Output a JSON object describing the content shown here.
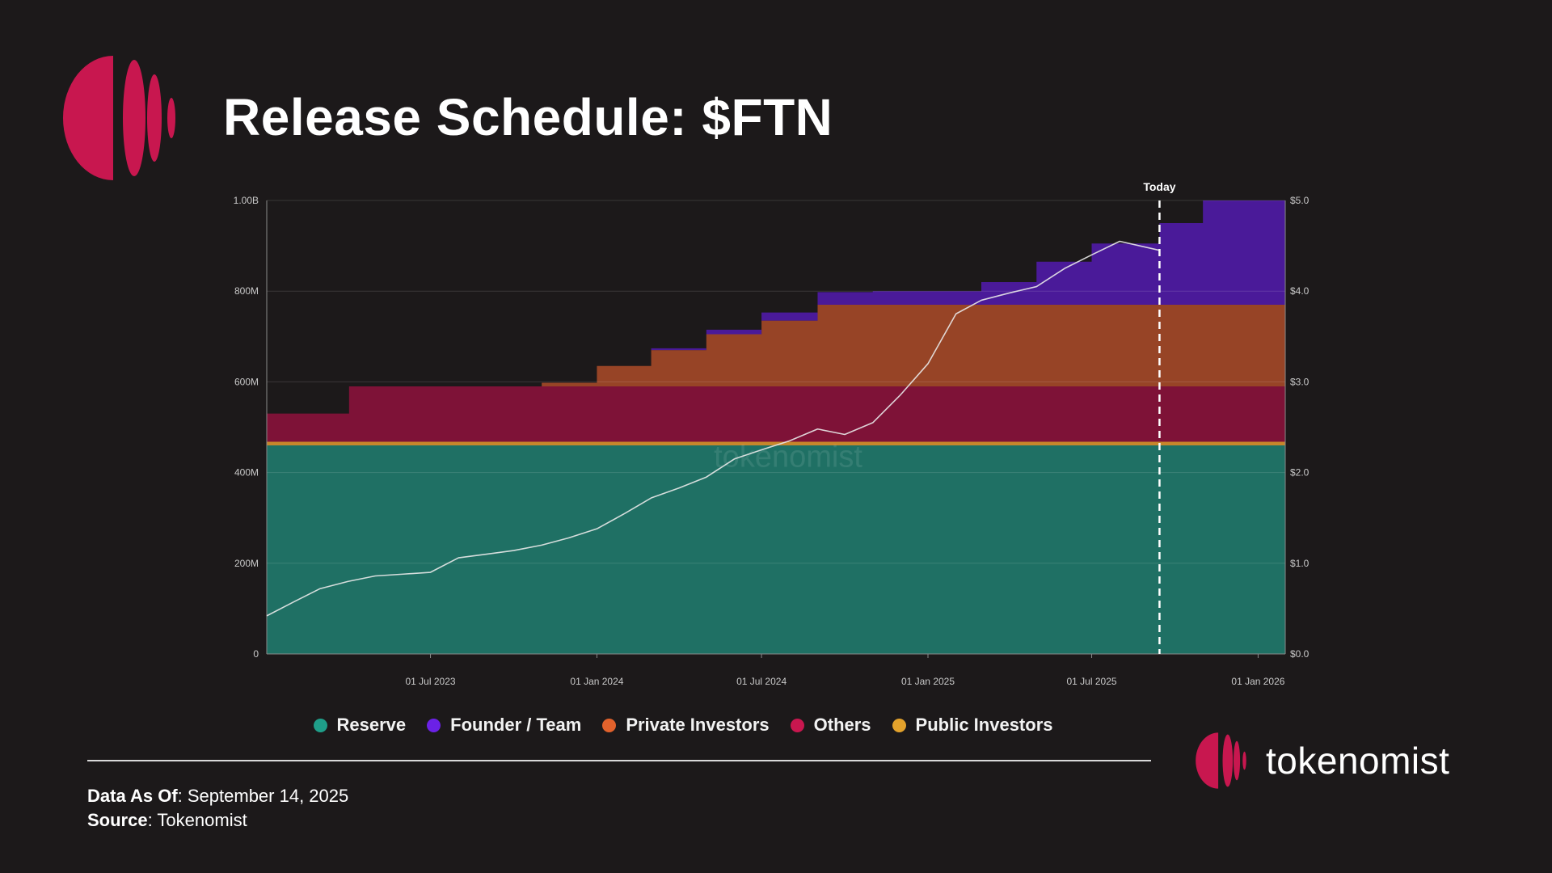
{
  "header": {
    "title": "Release Schedule: $FTN"
  },
  "colors": {
    "background": "#1c191a",
    "brand": "#c8174f",
    "reserve": "#1f7064",
    "founder_team": "#4a1a99",
    "private_investors": "#974426",
    "others": "#7e1237",
    "public_investors": "#c7862b",
    "price_line": "#e9e9e9"
  },
  "chart_data": {
    "type": "area",
    "stacked": true,
    "title": "Release Schedule: $FTN",
    "x": [
      "2023-01-01",
      "2023-04-01",
      "2023-04-02",
      "2023-07-01",
      "2023-10-01",
      "2023-11-01",
      "2024-01-01",
      "2024-03-01",
      "2024-05-01",
      "2024-07-01",
      "2024-09-01",
      "2024-11-01",
      "2025-01-01",
      "2025-03-01",
      "2025-05-01",
      "2025-07-01",
      "2025-09-14",
      "2025-11-01",
      "2026-01-31"
    ],
    "x_ticks": [
      "01 Jul 2023",
      "01 Jan 2024",
      "01 Jul 2024",
      "01 Jan 2025",
      "01 Jul 2025",
      "01 Jan 2026"
    ],
    "x_tick_dates": [
      "2023-07-01",
      "2024-01-01",
      "2024-07-01",
      "2025-01-01",
      "2025-07-01",
      "2026-01-01"
    ],
    "xlim": [
      "2023-01-01",
      "2026-01-31"
    ],
    "y_left_ticks": [
      "0",
      "200M",
      "400M",
      "600M",
      "800M",
      "1.00B"
    ],
    "y_left_range": [
      0,
      1000
    ],
    "y_right_ticks": [
      "$0.0",
      "$1.0",
      "$2.0",
      "$3.0",
      "$4.0",
      "$5.0"
    ],
    "y_right_range": [
      0,
      5
    ],
    "units_left": "M tokens",
    "series": [
      {
        "name": "Reserve",
        "color_key": "reserve",
        "values": [
          460,
          460,
          460,
          460,
          460,
          460,
          460,
          460,
          460,
          460,
          460,
          460,
          460,
          460,
          460,
          460,
          460,
          460,
          460
        ]
      },
      {
        "name": "Public Investors",
        "color_key": "public_investors",
        "values": [
          8,
          8,
          8,
          8,
          8,
          8,
          8,
          8,
          8,
          8,
          8,
          8,
          8,
          8,
          8,
          8,
          8,
          8,
          8
        ]
      },
      {
        "name": "Others",
        "color_key": "others",
        "values": [
          62,
          62,
          122,
          122,
          122,
          122,
          122,
          122,
          122,
          122,
          122,
          122,
          122,
          122,
          122,
          122,
          122,
          122,
          122
        ]
      },
      {
        "name": "Private Investors",
        "color_key": "private_investors",
        "values": [
          0,
          0,
          0,
          0,
          0,
          8,
          45,
          80,
          115,
          145,
          180,
          180,
          180,
          180,
          180,
          180,
          180,
          180,
          180
        ]
      },
      {
        "name": "Founder / Team",
        "color_key": "founder_team",
        "values": [
          0,
          0,
          0,
          0,
          0,
          0,
          0,
          4,
          10,
          18,
          28,
          30,
          30,
          50,
          95,
          135,
          180,
          230,
          230
        ]
      }
    ],
    "price_series": {
      "name": "Price",
      "axis": "right",
      "x": [
        "2023-01-01",
        "2023-02-01",
        "2023-03-01",
        "2023-04-01",
        "2023-05-01",
        "2023-06-01",
        "2023-07-01",
        "2023-08-01",
        "2023-09-01",
        "2023-10-01",
        "2023-11-01",
        "2023-12-01",
        "2024-01-01",
        "2024-02-01",
        "2024-03-01",
        "2024-04-01",
        "2024-05-01",
        "2024-06-01",
        "2024-07-01",
        "2024-08-01",
        "2024-09-01",
        "2024-10-01",
        "2024-11-01",
        "2024-12-01",
        "2025-01-01",
        "2025-02-01",
        "2025-03-01",
        "2025-04-01",
        "2025-05-01",
        "2025-06-01",
        "2025-07-01",
        "2025-08-01",
        "2025-09-14"
      ],
      "values": [
        0.42,
        0.58,
        0.72,
        0.8,
        0.86,
        0.88,
        0.9,
        1.06,
        1.1,
        1.14,
        1.2,
        1.28,
        1.38,
        1.55,
        1.72,
        1.83,
        1.95,
        2.15,
        2.25,
        2.35,
        2.48,
        2.42,
        2.55,
        2.85,
        3.2,
        3.75,
        3.9,
        3.98,
        4.05,
        4.25,
        4.4,
        4.55,
        4.45
      ]
    },
    "today_label": "Today",
    "today_date": "2025-09-14",
    "watermark": "tokenomist",
    "legend": [
      "Reserve",
      "Founder / Team",
      "Private Investors",
      "Others",
      "Public Investors"
    ],
    "legend_position": "bottom-center",
    "grid": true
  },
  "legend": [
    {
      "label": "Reserve",
      "color": "#1f9e89"
    },
    {
      "label": "Founder / Team",
      "color": "#6b21e6"
    },
    {
      "label": "Private Investors",
      "color": "#e2622c"
    },
    {
      "label": "Others",
      "color": "#c8174f"
    },
    {
      "label": "Public Investors",
      "color": "#e3a22c"
    }
  ],
  "footer": {
    "data_as_of_label": "Data As Of",
    "data_as_of_value": ": September 14, 2025",
    "source_label": "Source",
    "source_value": ": Tokenomist"
  },
  "brand": {
    "name": "tokenomist"
  }
}
